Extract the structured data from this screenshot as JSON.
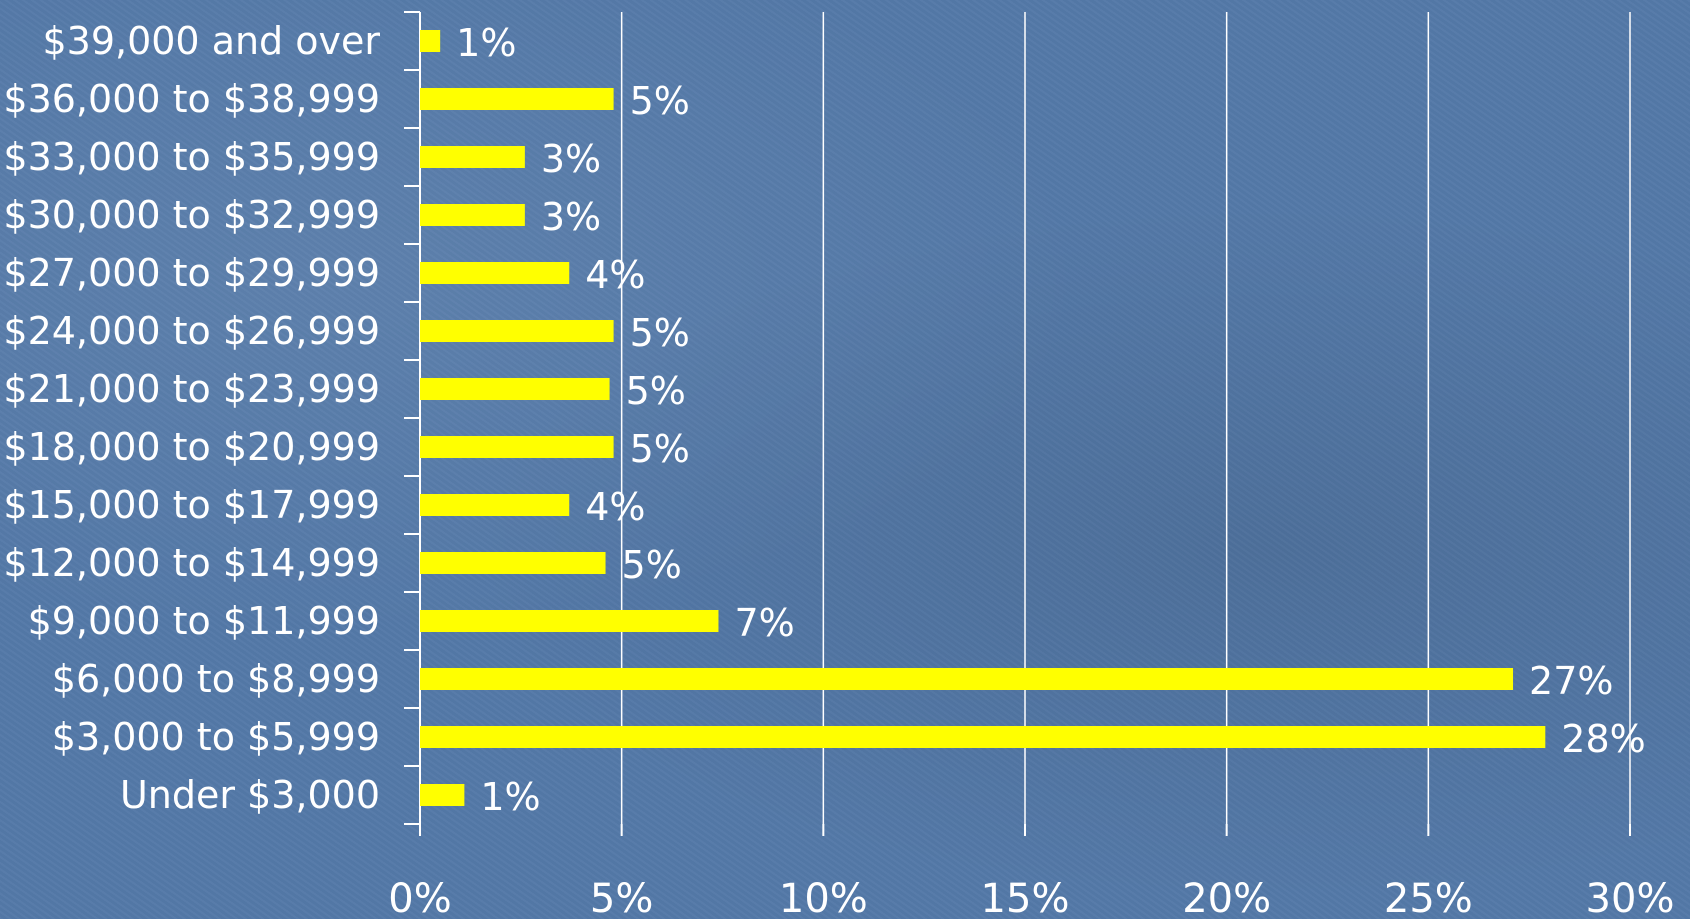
{
  "chart_data": {
    "type": "bar",
    "orientation": "horizontal",
    "categories": [
      "$39,000 and over",
      "$36,000 to $38,999",
      "$33,000 to $35,999",
      "$30,000 to $32,999",
      "$27,000 to $29,999",
      "$24,000 to $26,999",
      "$21,000 to $23,999",
      "$18,000 to $20,999",
      "$15,000 to $17,999",
      "$12,000 to $14,999",
      "$9,000 to $11,999",
      "$6,000 to $8,999",
      "$3,000 to $5,999",
      "Under $3,000"
    ],
    "values": [
      0.5,
      4.8,
      2.6,
      2.6,
      3.7,
      4.8,
      4.7,
      4.8,
      3.7,
      4.6,
      7.4,
      27.1,
      27.9,
      1.1
    ],
    "data_labels": [
      "1%",
      "5%",
      "3%",
      "3%",
      "4%",
      "5%",
      "5%",
      "5%",
      "4%",
      "5%",
      "7%",
      "27%",
      "28%",
      "1%"
    ],
    "xlim": [
      0,
      30
    ],
    "xticks": [
      0,
      5,
      10,
      15,
      20,
      25,
      30
    ],
    "xtick_labels": [
      "0%",
      "5%",
      "10%",
      "15%",
      "20%",
      "25%",
      "30%"
    ],
    "title": "",
    "xlabel": "",
    "ylabel": "",
    "grid": "vertical",
    "legend": "none",
    "colors": {
      "bar": "#ffff00",
      "text": "#ffffff",
      "grid": "#ffffff",
      "background": "#5479a8"
    }
  }
}
